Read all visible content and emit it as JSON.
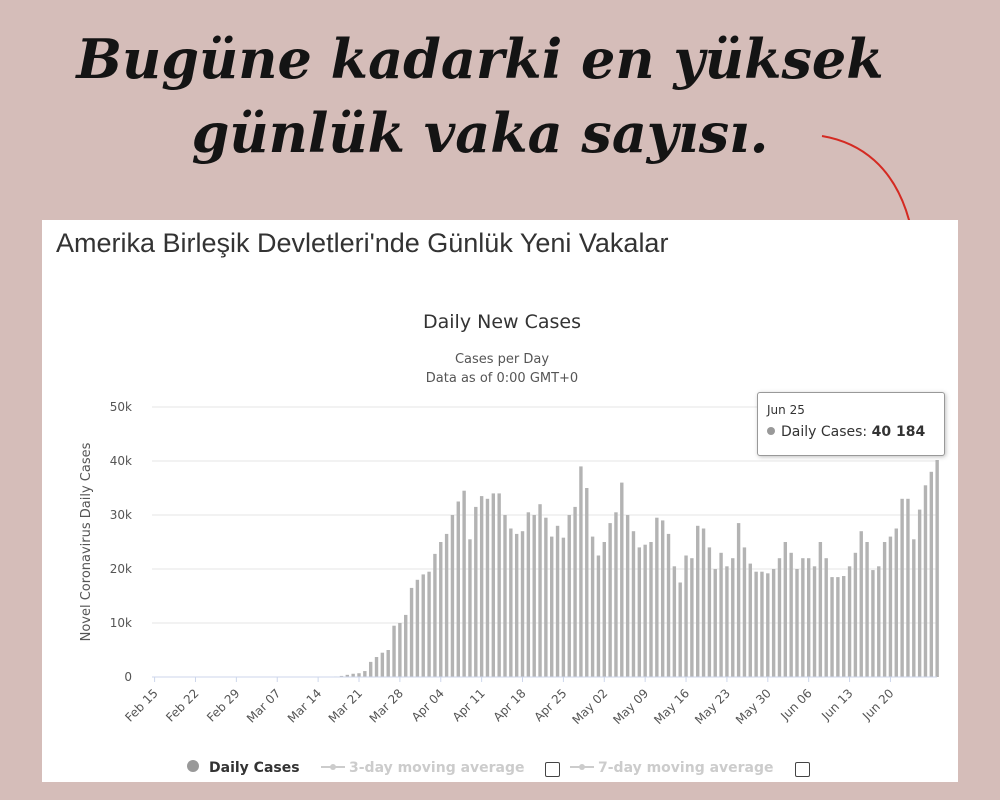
{
  "headline": {
    "line1": "Bugüne kadarki en yüksek",
    "line2": "günlük vaka sayısı."
  },
  "panel_title": "Amerika Birleşik Devletleri'nde Günlük Yeni Vakalar",
  "colors": {
    "background": "#d5bdb9",
    "bar": "#b3b3b3",
    "arrow": "#d42a22",
    "legend_inactive": "#cccccc"
  },
  "tooltip": {
    "date": "Jun 25",
    "series": "Daily Cases:",
    "value": "40 184"
  },
  "legend": [
    {
      "label": "Daily Cases",
      "active": true
    },
    {
      "label": "3-day moving average",
      "active": false
    },
    {
      "label": "7-day moving average",
      "active": false
    }
  ],
  "chart_data": {
    "type": "bar",
    "title": "Daily New Cases",
    "subtitle": [
      "Cases per Day",
      "Data as of 0:00 GMT+0"
    ],
    "ylabel": "Novel Coronavirus Daily Cases",
    "ylim": [
      0,
      50000
    ],
    "yticks": [
      "0",
      "10k",
      "20k",
      "30k",
      "40k",
      "50k"
    ],
    "x_tick_labels": [
      "Feb 15",
      "Feb 22",
      "Feb 29",
      "Mar 07",
      "Mar 14",
      "Mar 21",
      "Mar 28",
      "Apr 04",
      "Apr 11",
      "Apr 18",
      "Apr 25",
      "May 02",
      "May 09",
      "May 16",
      "May 23",
      "May 30",
      "Jun 06",
      "Jun 13",
      "Jun 20"
    ],
    "x_start": "Feb 15",
    "x_end": "Jun 25",
    "grid": true,
    "legend_position": "bottom",
    "series": [
      {
        "name": "Daily Cases",
        "values": [
          0,
          0,
          0,
          0,
          0,
          0,
          0,
          0,
          0,
          0,
          0,
          0,
          0,
          0,
          0,
          0,
          0,
          0,
          0,
          0,
          0,
          0,
          0,
          0,
          0,
          0,
          0,
          0,
          0,
          0,
          0,
          100,
          200,
          400,
          600,
          700,
          1100,
          2800,
          3700,
          4500,
          5000,
          9500,
          10000,
          11500,
          16500,
          18000,
          19000,
          19500,
          22800,
          25000,
          26500,
          30000,
          32500,
          34500,
          25500,
          31500,
          33500,
          33000,
          34000,
          34000,
          30000,
          27500,
          26500,
          27000,
          30500,
          30000,
          32000,
          29500,
          26000,
          28000,
          25800,
          30000,
          31500,
          39000,
          35000,
          26000,
          22500,
          25000,
          28500,
          30500,
          36000,
          30000,
          27000,
          24000,
          24500,
          25000,
          29500,
          29000,
          26500,
          20500,
          17500,
          22500,
          22000,
          28000,
          27500,
          24000,
          20000,
          23000,
          20500,
          22000,
          28500,
          24000,
          21000,
          19500,
          19500,
          19200,
          20000,
          22000,
          25000,
          23000,
          20000,
          22000,
          22000,
          20500,
          25000,
          22000,
          18500,
          18500,
          18700,
          20500,
          23000,
          27000,
          25000,
          19800,
          20500,
          25000,
          26000,
          27500,
          33000,
          33000,
          25500,
          31000,
          35500,
          38000,
          40184
        ]
      }
    ]
  }
}
